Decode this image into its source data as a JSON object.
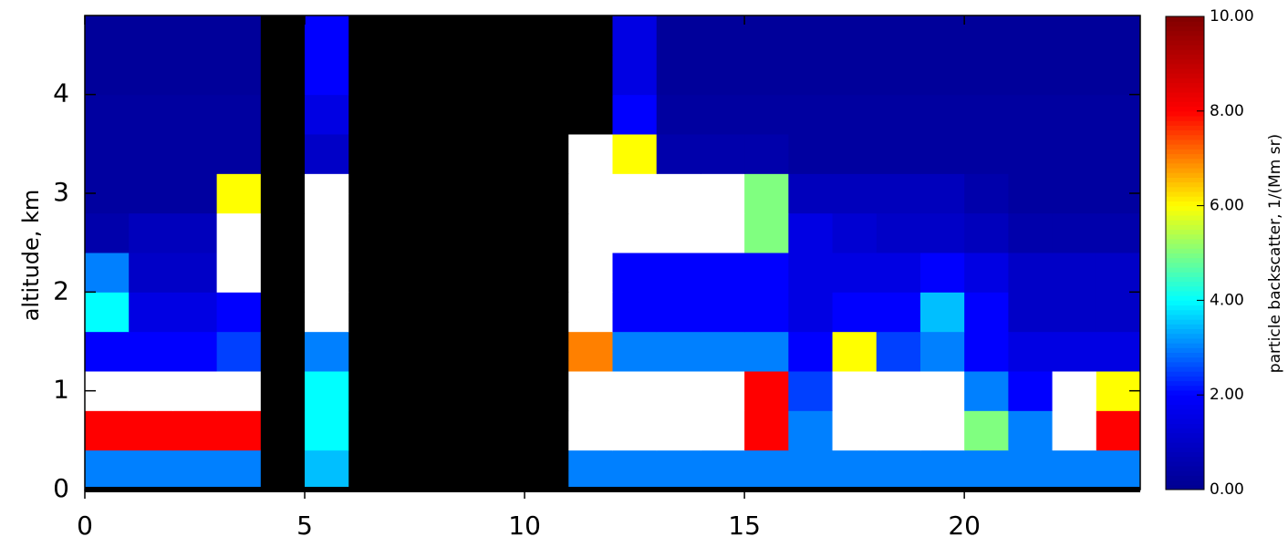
{
  "chart_data": {
    "type": "heatmap",
    "y_label": "altitude, km",
    "colorbar_label": "particle backscatter, 1/(Mm sr)",
    "xlim": [
      0,
      24
    ],
    "xticks": [
      0,
      5,
      10,
      15,
      20
    ],
    "ylim": [
      0,
      4.8
    ],
    "yticks": [
      0,
      1,
      2,
      3,
      4
    ],
    "xbins": [
      0,
      1,
      2,
      3,
      4,
      5,
      6,
      7,
      8,
      9,
      10,
      11,
      12,
      13,
      14,
      15,
      16,
      17,
      18,
      19,
      20,
      21,
      22,
      23,
      24
    ],
    "ybins": [
      0,
      0.4,
      0.8,
      1.2,
      1.6,
      2.0,
      2.4,
      2.8,
      3.2,
      3.6,
      4.0,
      4.4,
      4.8
    ],
    "clim": [
      0,
      10
    ],
    "cticks": [
      {
        "value": 0,
        "label": "0.00"
      },
      {
        "value": 2,
        "label": "2.00"
      },
      {
        "value": 4,
        "label": "4.00"
      },
      {
        "value": 6,
        "label": "6.00"
      },
      {
        "value": 8,
        "label": "8.00"
      },
      {
        "value": 10,
        "label": "10.00"
      }
    ],
    "colormap": [
      "#00008f",
      "#0000ff",
      "#00ffff",
      "#ffff00",
      "#ff0000",
      "#800000"
    ],
    "over_color": "#ffffff",
    "missing_color": "#000000",
    "z": [
      [
        3,
        3,
        3,
        3,
        null,
        3.5,
        null,
        null,
        null,
        null,
        null,
        3,
        3,
        3,
        3,
        3,
        3,
        3,
        3,
        3,
        3,
        3,
        3,
        3
      ],
      [
        8,
        8,
        8,
        8,
        null,
        4,
        null,
        null,
        null,
        null,
        null,
        12,
        12,
        12,
        12,
        8,
        3,
        12,
        12,
        12,
        5,
        3,
        12,
        8
      ],
      [
        12,
        12,
        12,
        12,
        null,
        4,
        null,
        null,
        null,
        null,
        null,
        12,
        12,
        12,
        12,
        8,
        2.5,
        12,
        12,
        12,
        3,
        2,
        12,
        6
      ],
      [
        2,
        2,
        2,
        2.5,
        null,
        3,
        null,
        null,
        null,
        null,
        null,
        7,
        3,
        3,
        3,
        3,
        2,
        6,
        2.5,
        3,
        2,
        1.5,
        1.5,
        1.5
      ],
      [
        4,
        1.5,
        1.5,
        2,
        null,
        12,
        null,
        null,
        null,
        null,
        null,
        12,
        2,
        2,
        2,
        2,
        1.5,
        2,
        2,
        3.5,
        2,
        1,
        1,
        1
      ],
      [
        3,
        1,
        1,
        12,
        null,
        12,
        null,
        null,
        null,
        null,
        null,
        12,
        2,
        2,
        2,
        2,
        1.5,
        1.5,
        1.5,
        2,
        1.5,
        1,
        1,
        1
      ],
      [
        0.5,
        0.8,
        0.8,
        12,
        null,
        12,
        null,
        null,
        null,
        null,
        null,
        12,
        12,
        12,
        12,
        5,
        1.5,
        1.2,
        1,
        1,
        0.8,
        0.5,
        0.5,
        0.5
      ],
      [
        0.3,
        0.3,
        0.3,
        6,
        null,
        12,
        null,
        null,
        null,
        null,
        null,
        12,
        12,
        12,
        12,
        5,
        0.8,
        0.8,
        0.8,
        0.8,
        0.5,
        0.3,
        0.3,
        0.3
      ],
      [
        0.3,
        0.3,
        0.3,
        0.3,
        null,
        1,
        null,
        null,
        null,
        null,
        null,
        12,
        6,
        0.5,
        0.5,
        0.5,
        0.3,
        0.3,
        0.3,
        0.3,
        0.3,
        0.3,
        0.3,
        0.3
      ],
      [
        0.3,
        0.3,
        0.3,
        0.3,
        null,
        1.5,
        null,
        null,
        null,
        null,
        null,
        null,
        2,
        0.3,
        0.3,
        0.3,
        0.3,
        0.3,
        0.3,
        0.3,
        0.3,
        0.3,
        0.3,
        0.3
      ],
      [
        0.2,
        0.2,
        0.2,
        0.2,
        null,
        2,
        null,
        null,
        null,
        null,
        null,
        null,
        1.5,
        0.2,
        0.2,
        0.2,
        0.2,
        0.2,
        0.2,
        0.2,
        0.2,
        0.2,
        0.2,
        0.2
      ],
      [
        0.2,
        0.2,
        0.2,
        0.2,
        null,
        2,
        null,
        null,
        null,
        null,
        null,
        null,
        1.5,
        0.2,
        0.2,
        0.2,
        0.2,
        0.2,
        0.2,
        0.2,
        0.2,
        0.2,
        0.2,
        0.2
      ]
    ]
  }
}
